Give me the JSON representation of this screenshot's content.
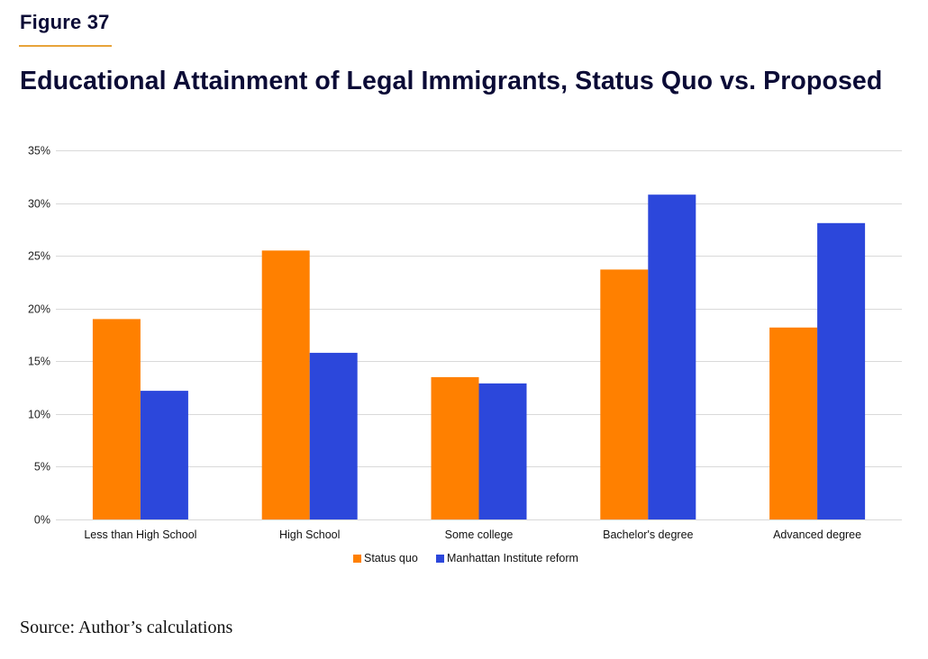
{
  "figure_label": "Figure 37",
  "title": "Educational Attainment of Legal Immigrants, Status Quo vs. Proposed",
  "source": "Source: Author’s calculations",
  "colors": {
    "status_quo": "#ff8000",
    "reform": "#2c47db",
    "accent_rule": "#e8a33a",
    "title": "#0b0b36",
    "grid": "#d9d9d9"
  },
  "chart_data": {
    "type": "bar",
    "title": "Educational Attainment of Legal Immigrants, Status Quo vs. Proposed",
    "xlabel": "",
    "ylabel": "",
    "categories": [
      "Less than High School",
      "High School",
      "Some college",
      "Bachelor's degree",
      "Advanced degree"
    ],
    "series": [
      {
        "name": "Status quo",
        "color": "#ff8000",
        "values": [
          19.0,
          25.5,
          13.5,
          23.7,
          18.2
        ]
      },
      {
        "name": "Manhattan Institute reform",
        "color": "#2c47db",
        "values": [
          12.2,
          15.8,
          12.9,
          30.8,
          28.1
        ]
      }
    ],
    "ylim": [
      0,
      35
    ],
    "yticks": [
      0,
      5,
      10,
      15,
      20,
      25,
      30,
      35
    ],
    "ytick_labels": [
      "0%",
      "5%",
      "10%",
      "15%",
      "20%",
      "25%",
      "30%",
      "35%"
    ],
    "grid": true,
    "legend_position": "bottom-center"
  }
}
